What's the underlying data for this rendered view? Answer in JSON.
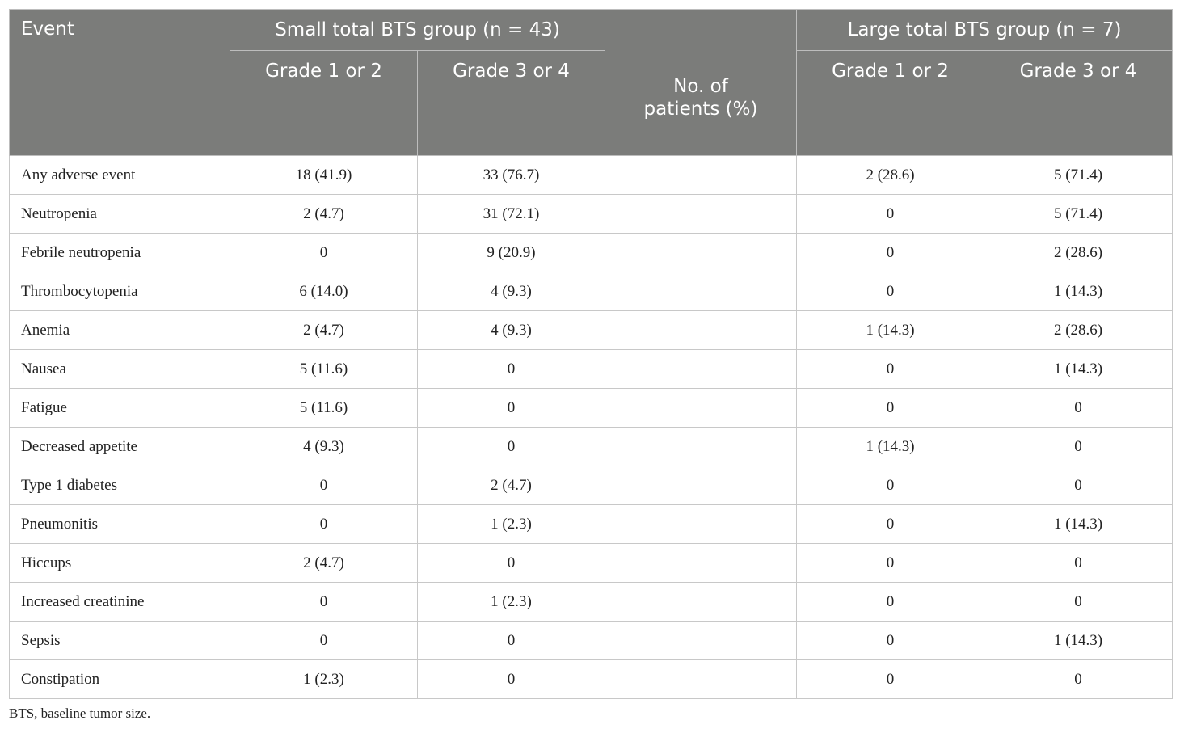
{
  "header": {
    "event": "Event",
    "small_group": "Small total BTS group (n = 43)",
    "large_group": "Large total BTS group (n = 7)",
    "grade_12": "Grade 1 or 2",
    "grade_34": "Grade 3 or 4",
    "no_of": "No. of",
    "patients_pct": "patients (%)"
  },
  "rows": [
    {
      "event": "Any adverse event",
      "s12": "18 (41.9)",
      "s34": "33 (76.7)",
      "l12": "2 (28.6)",
      "l34": "5 (71.4)"
    },
    {
      "event": "Neutropenia",
      "s12": "2 (4.7)",
      "s34": "31 (72.1)",
      "l12": "0",
      "l34": "5 (71.4)"
    },
    {
      "event": "Febrile neutropenia",
      "s12": "0",
      "s34": "9 (20.9)",
      "l12": "0",
      "l34": "2 (28.6)"
    },
    {
      "event": "Thrombocytopenia",
      "s12": "6 (14.0)",
      "s34": "4 (9.3)",
      "l12": "0",
      "l34": "1 (14.3)"
    },
    {
      "event": "Anemia",
      "s12": "2 (4.7)",
      "s34": "4 (9.3)",
      "l12": "1 (14.3)",
      "l34": "2 (28.6)"
    },
    {
      "event": "Nausea",
      "s12": "5 (11.6)",
      "s34": "0",
      "l12": "0",
      "l34": "1 (14.3)"
    },
    {
      "event": "Fatigue",
      "s12": "5 (11.6)",
      "s34": "0",
      "l12": "0",
      "l34": "0"
    },
    {
      "event": "Decreased appetite",
      "s12": "4 (9.3)",
      "s34": "0",
      "l12": "1 (14.3)",
      "l34": "0"
    },
    {
      "event": "Type 1 diabetes",
      "s12": "0",
      "s34": "2 (4.7)",
      "l12": "0",
      "l34": "0"
    },
    {
      "event": "Pneumonitis",
      "s12": "0",
      "s34": "1 (2.3)",
      "l12": "0",
      "l34": "1 (14.3)"
    },
    {
      "event": "Hiccups",
      "s12": "2 (4.7)",
      "s34": "0",
      "l12": "0",
      "l34": "0"
    },
    {
      "event": "Increased creatinine",
      "s12": "0",
      "s34": "1 (2.3)",
      "l12": "0",
      "l34": "0"
    },
    {
      "event": "Sepsis",
      "s12": "0",
      "s34": "0",
      "l12": "0",
      "l34": "1 (14.3)"
    },
    {
      "event": "Constipation",
      "s12": "1 (2.3)",
      "s34": "0",
      "l12": "0",
      "l34": "0"
    }
  ],
  "footnote": "BTS, baseline tumor size."
}
